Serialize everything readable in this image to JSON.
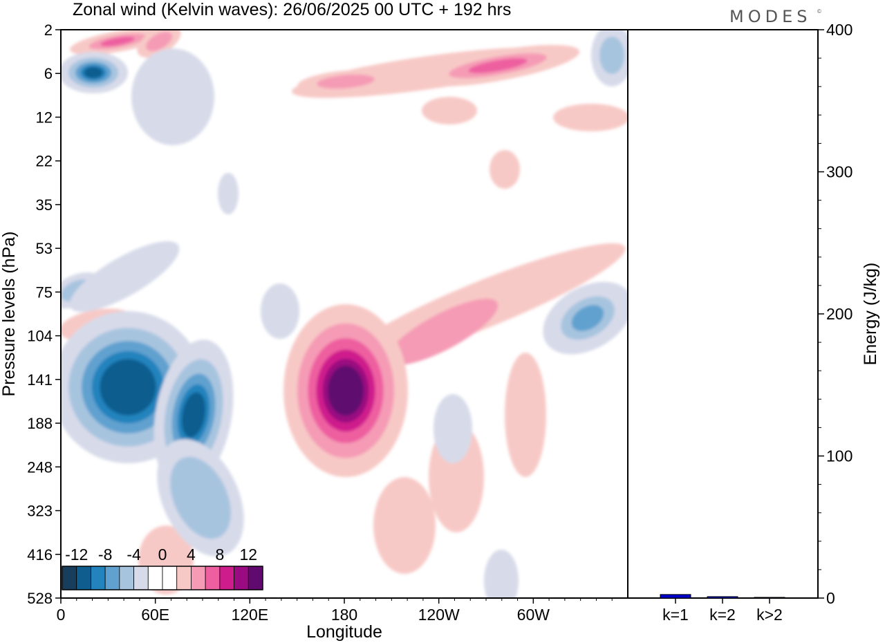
{
  "header": {
    "title": "Zonal wind (Kelvin waves):  26/06/2025  00 UTC  + 192 hrs",
    "brand": "MODES",
    "brand_mark": "©"
  },
  "chart_data": [
    {
      "type": "heatmap",
      "title": "Zonal wind (Kelvin waves):  26/06/2025  00 UTC  + 192 hrs",
      "xlabel": "Longitude",
      "ylabel": "Pressure levels (hPa)",
      "x_ticks": [
        "0",
        "60E",
        "120E",
        "180",
        "120W",
        "60W"
      ],
      "x_tick_degrees": [
        0,
        60,
        120,
        180,
        240,
        300
      ],
      "xlim": [
        0,
        360
      ],
      "y_ticks": [
        "2",
        "6",
        "12",
        "22",
        "35",
        "53",
        "75",
        "104",
        "141",
        "188",
        "248",
        "323",
        "416",
        "528"
      ],
      "y_scale": "level index (reversed, top = 2 hPa)",
      "colorbar": {
        "labels": [
          "-12",
          "-8",
          "-4",
          "0",
          "4",
          "8",
          "12"
        ],
        "levels": [
          -14,
          -12,
          -10,
          -8,
          -6,
          -4,
          -2,
          0,
          2,
          4,
          6,
          8,
          10,
          12,
          14
        ],
        "colors": [
          "#173e5c",
          "#0f5d8f",
          "#2383bd",
          "#60a1cf",
          "#a7c4df",
          "#d7dae9",
          "#ffffff",
          "#ffffff",
          "#f7c9c6",
          "#f59bb5",
          "#ee5fa0",
          "#cf1c8c",
          "#9a0a80",
          "#600a70"
        ]
      },
      "features": [
        {
          "lon": 183,
          "level": 141,
          "peak": 14,
          "sign": "positive",
          "desc": "strong westerly maximum"
        },
        {
          "lon": 45,
          "level": 141,
          "peak": -12,
          "sign": "negative"
        },
        {
          "lon": 80,
          "level": 160,
          "peak": -10,
          "sign": "negative"
        },
        {
          "lon": 340,
          "level": 104,
          "peak": -8,
          "sign": "negative"
        },
        {
          "lon": 20,
          "level": 6,
          "peak": -10,
          "sign": "negative"
        },
        {
          "lon": 290,
          "level": 6,
          "peak": 8,
          "sign": "positive"
        }
      ]
    },
    {
      "type": "bar",
      "categories": [
        "k=1",
        "k=2",
        "k>2"
      ],
      "values": [
        2.5,
        1.0,
        0.5
      ],
      "ylabel": "Energy (J/kg)",
      "ylim": [
        0,
        400
      ],
      "y_ticks": [
        "0",
        "100",
        "200",
        "300",
        "400"
      ],
      "bar_color": "#0000cc"
    }
  ]
}
